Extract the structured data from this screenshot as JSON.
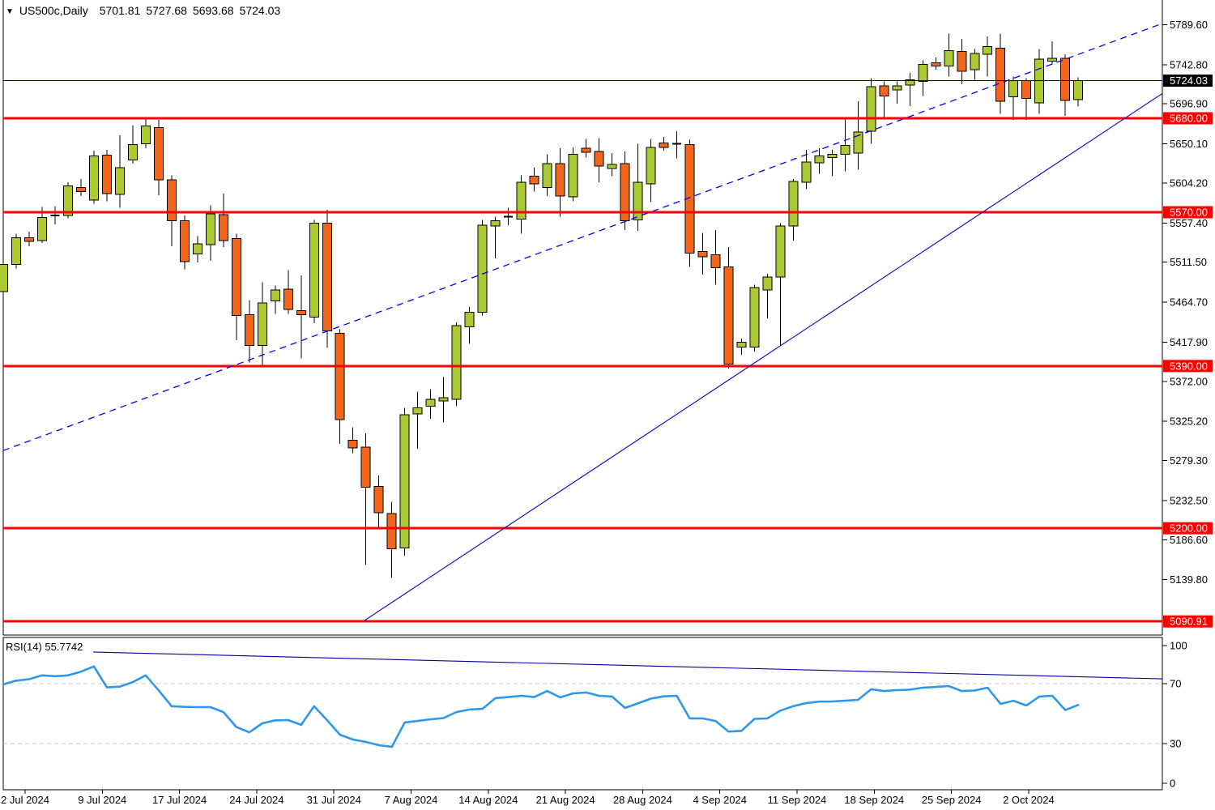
{
  "header": {
    "marker_icon": "▼",
    "symbol_timeframe": "US500c,Daily",
    "open": "5701.81",
    "high": "5727.68",
    "low": "5693.68",
    "close": "5724.03"
  },
  "colors": {
    "background": "#FFFFFF",
    "border": "#000000",
    "bull_candle": "#ABC932",
    "bear_candle": "#F4661D",
    "candle_outline": "#000000",
    "level_line": "#FD0000",
    "level_box": "#FD0000",
    "current_price_line": "#000066",
    "current_price_box": "#000000",
    "trendline_dashed": "#0000FD",
    "trendline_solid": "#0202CE",
    "rsi_line": "#2F97E9",
    "rsi_trendline": "#0000A0",
    "rsi_level_dashed": "#C9C9C9",
    "text": "#000000",
    "axis_text_inverse": "#FFFFFF"
  },
  "chart_data": {
    "type": "candlestick",
    "symbol": "US500c",
    "timeframe": "Daily",
    "title": "US500c,Daily  5701.81 5727.68 5693.68 5724.03",
    "x_labels": [
      "2 Jul 2024",
      "9 Jul 2024",
      "17 Jul 2024",
      "24 Jul 2024",
      "31 Jul 2024",
      "7 Aug 2024",
      "14 Aug 2024",
      "21 Aug 2024",
      "28 Aug 2024",
      "4 Sep 2024",
      "11 Sep 2024",
      "18 Sep 2024",
      "25 Sep 2024",
      "2 Oct 2024"
    ],
    "price_axis_ticks": [
      5789.6,
      5742.8,
      5696.9,
      5650.1,
      5604.2,
      5557.4,
      5511.5,
      5464.7,
      5417.9,
      5372.0,
      5325.2,
      5279.3,
      5232.5,
      5186.6,
      5139.8
    ],
    "current_price": {
      "price": 5724.03,
      "label": "5724.03"
    },
    "horizontal_levels": [
      {
        "price": 5680.0,
        "label": "5680.00"
      },
      {
        "price": 5570.0,
        "label": "5570.00"
      },
      {
        "price": 5390.0,
        "label": "5390.00"
      },
      {
        "price": 5200.0,
        "label": "5200.00"
      },
      {
        "price": 5090.91,
        "label": "5090.91"
      }
    ],
    "trendlines": [
      {
        "pane": "main",
        "style": "dashed",
        "points": [
          [
            4,
            5291
          ],
          [
            1435,
            5791
          ]
        ]
      },
      {
        "pane": "main",
        "style": "solid",
        "points": [
          [
            450,
            5092
          ],
          [
            1435,
            5709
          ]
        ]
      },
      {
        "pane": "rsi",
        "style": "solid",
        "points": [
          [
            115,
            91.1
          ],
          [
            1435,
            73.2
          ]
        ]
      }
    ],
    "candles_ohlc": [
      [
        5477,
        5513,
        5451,
        5509
      ],
      [
        5509,
        5545,
        5504,
        5540
      ],
      [
        5540,
        5547,
        5530,
        5536
      ],
      [
        5537,
        5576,
        5534,
        5564
      ],
      [
        5565,
        5577,
        5556,
        5566
      ],
      [
        5566,
        5605,
        5563,
        5601
      ],
      [
        5599,
        5609,
        5589,
        5594
      ],
      [
        5584,
        5642,
        5580,
        5636
      ],
      [
        5637,
        5643,
        5583,
        5592
      ],
      [
        5591,
        5660,
        5575,
        5622
      ],
      [
        5631,
        5672,
        5627,
        5649
      ],
      [
        5650,
        5679,
        5645,
        5671
      ],
      [
        5669,
        5678,
        5590,
        5608
      ],
      [
        5608,
        5613,
        5530,
        5560
      ],
      [
        5560,
        5566,
        5503,
        5512
      ],
      [
        5521,
        5542,
        5511,
        5533
      ],
      [
        5532,
        5578,
        5513,
        5568
      ],
      [
        5567,
        5592,
        5529,
        5537
      ],
      [
        5539,
        5545,
        5420,
        5449
      ],
      [
        5450,
        5467,
        5394,
        5414
      ],
      [
        5414,
        5488,
        5389,
        5464
      ],
      [
        5466,
        5484,
        5451,
        5479
      ],
      [
        5480,
        5502,
        5451,
        5456
      ],
      [
        5455,
        5496,
        5399,
        5450
      ],
      [
        5447,
        5561,
        5440,
        5557
      ],
      [
        5557,
        5573,
        5411,
        5431
      ],
      [
        5428,
        5433,
        5299,
        5327
      ],
      [
        5303,
        5318,
        5288,
        5294
      ],
      [
        5295,
        5311,
        5157,
        5248
      ],
      [
        5249,
        5262,
        5200,
        5218
      ],
      [
        5217,
        5231,
        5142,
        5176
      ],
      [
        5177,
        5341,
        5168,
        5333
      ],
      [
        5334,
        5360,
        5293,
        5341
      ],
      [
        5343,
        5363,
        5328,
        5351
      ],
      [
        5349,
        5377,
        5324,
        5353
      ],
      [
        5351,
        5441,
        5343,
        5437
      ],
      [
        5436,
        5459,
        5416,
        5453
      ],
      [
        5453,
        5561,
        5449,
        5555
      ],
      [
        5554,
        5565,
        5516,
        5560
      ],
      [
        5563,
        5575,
        5555,
        5565
      ],
      [
        5562,
        5613,
        5545,
        5605
      ],
      [
        5612,
        5622,
        5594,
        5603
      ],
      [
        5599,
        5638,
        5589,
        5627
      ],
      [
        5627,
        5645,
        5565,
        5589
      ],
      [
        5588,
        5646,
        5583,
        5638
      ],
      [
        5645,
        5656,
        5634,
        5640
      ],
      [
        5641,
        5657,
        5605,
        5624
      ],
      [
        5621,
        5639,
        5612,
        5626
      ],
      [
        5627,
        5641,
        5549,
        5560
      ],
      [
        5561,
        5650,
        5548,
        5605
      ],
      [
        5603,
        5656,
        5582,
        5646
      ],
      [
        5651,
        5658,
        5642,
        5646
      ],
      [
        5648,
        5665,
        5633,
        5650
      ],
      [
        5649,
        5655,
        5506,
        5522
      ],
      [
        5524,
        5546,
        5497,
        5518
      ],
      [
        5520,
        5549,
        5485,
        5505
      ],
      [
        5506,
        5529,
        5387,
        5392
      ],
      [
        5412,
        5422,
        5403,
        5418
      ],
      [
        5412,
        5485,
        5407,
        5482
      ],
      [
        5479,
        5498,
        5446,
        5494
      ],
      [
        5494,
        5557,
        5413,
        5554
      ],
      [
        5554,
        5609,
        5537,
        5606
      ],
      [
        5605,
        5643,
        5597,
        5629
      ],
      [
        5628,
        5645,
        5615,
        5636
      ],
      [
        5634,
        5643,
        5612,
        5638
      ],
      [
        5638,
        5679,
        5618,
        5648
      ],
      [
        5639,
        5700,
        5620,
        5664
      ],
      [
        5665,
        5727,
        5650,
        5717
      ],
      [
        5718,
        5723,
        5679,
        5706
      ],
      [
        5713,
        5723,
        5697,
        5718
      ],
      [
        5719,
        5733,
        5694,
        5725
      ],
      [
        5723,
        5748,
        5706,
        5743
      ],
      [
        5745,
        5751,
        5737,
        5741
      ],
      [
        5741,
        5779,
        5729,
        5759
      ],
      [
        5758,
        5773,
        5720,
        5735
      ],
      [
        5737,
        5761,
        5725,
        5756
      ],
      [
        5755,
        5776,
        5729,
        5764
      ],
      [
        5762,
        5779,
        5685,
        5700
      ],
      [
        5705,
        5729,
        5678,
        5724
      ],
      [
        5724,
        5727,
        5678,
        5703
      ],
      [
        5698,
        5761,
        5685,
        5749
      ],
      [
        5747,
        5770,
        5743,
        5750
      ],
      [
        5750,
        5755,
        5683,
        5701
      ],
      [
        5701.81,
        5727.68,
        5693.68,
        5724.03
      ]
    ],
    "rsi": {
      "label": "RSI(14) 55.7742",
      "period": 14,
      "value": 55.7742,
      "axis_labels": [
        {
          "v": 100,
          "t": "100"
        },
        {
          "v": 70,
          "t": "70"
        },
        {
          "v": 30,
          "t": "30"
        },
        {
          "v": 0,
          "t": "0"
        }
      ],
      "dashed_levels": [
        70,
        30
      ],
      "values": [
        69.5,
        72,
        73,
        75.5,
        75,
        75.5,
        78,
        81.5,
        67.5,
        68,
        71,
        75.5,
        65.5,
        55,
        54.5,
        54.3,
        54.3,
        51,
        41,
        37.5,
        43.5,
        45.5,
        45.7,
        42.5,
        54.9,
        45.7,
        35.9,
        32.7,
        31.1,
        28.9,
        27.8,
        44.1,
        45.1,
        46.2,
        47,
        51.1,
        52.7,
        53.2,
        60.3,
        61,
        61.9,
        61,
        65.1,
        60.8,
        63.5,
        64.1,
        61.9,
        61.4,
        53.8,
        56.8,
        60,
        61.5,
        61.9,
        46.8,
        46.8,
        45.1,
        38,
        38.5,
        46.5,
        46.8,
        52,
        55,
        57,
        58,
        58.1,
        58.6,
        59.2,
        66.2,
        65.1,
        65.7,
        66,
        67.3,
        67.8,
        68.4,
        65.1,
        65.4,
        67.3,
        56.5,
        58.6,
        55.4,
        61.4,
        61.9,
        52.4,
        55.77
      ]
    }
  }
}
